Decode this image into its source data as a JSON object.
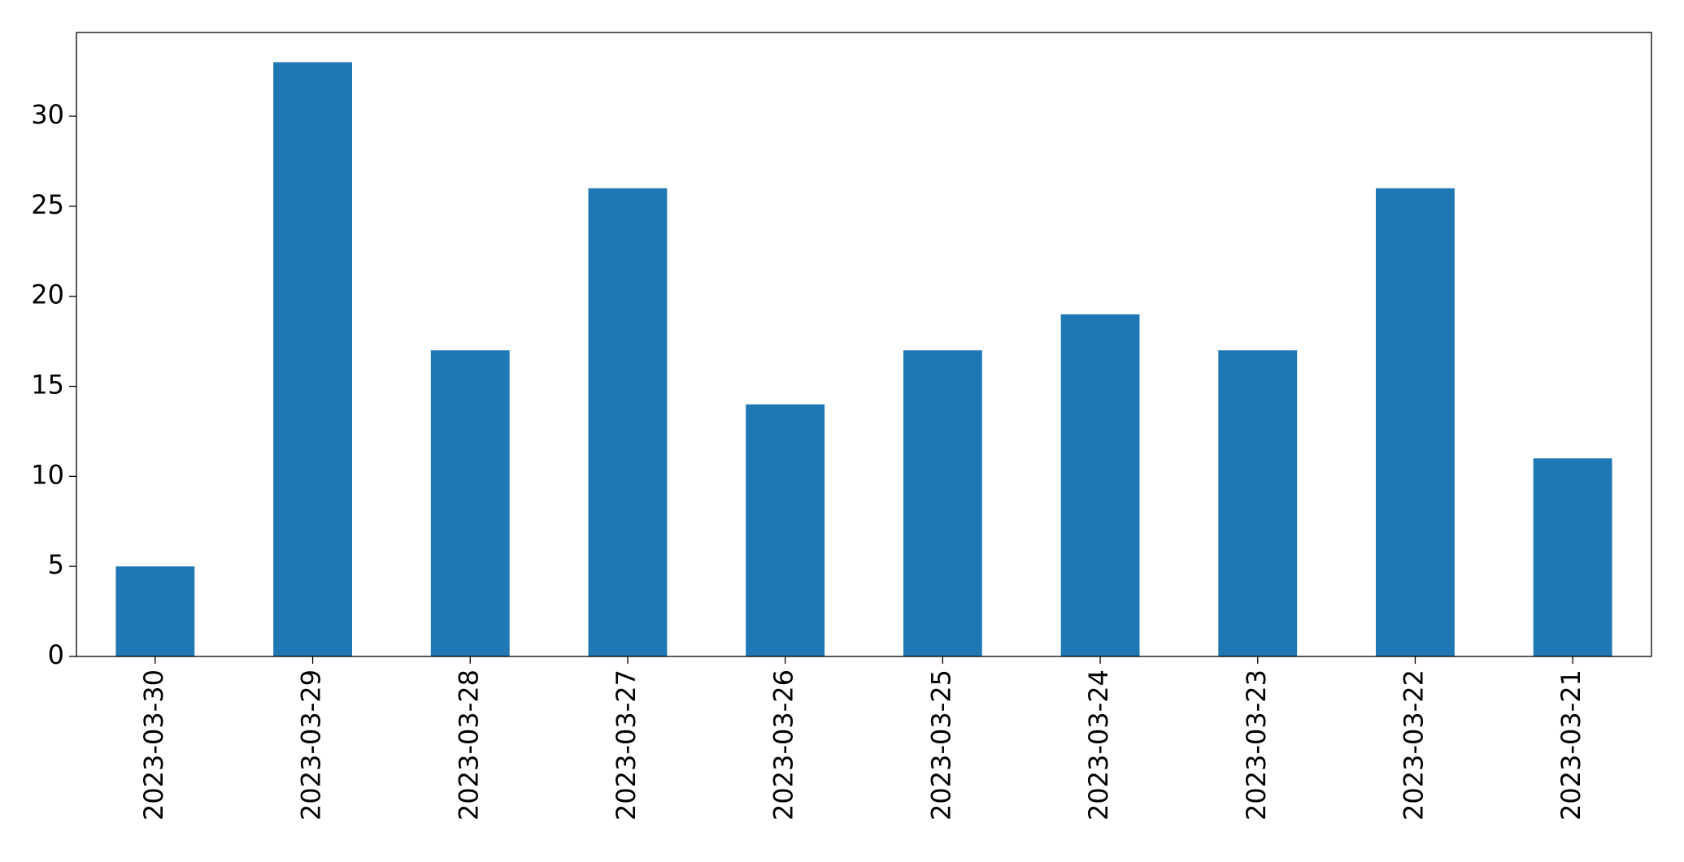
{
  "chart_data": {
    "type": "bar",
    "categories": [
      "2023-03-30",
      "2023-03-29",
      "2023-03-28",
      "2023-03-27",
      "2023-03-26",
      "2023-03-25",
      "2023-03-24",
      "2023-03-23",
      "2023-03-22",
      "2023-03-21"
    ],
    "values": [
      5,
      33,
      17,
      26,
      14,
      17,
      19,
      17,
      26,
      11
    ],
    "color": "#1f77b4",
    "ylim": [
      0,
      34.65
    ],
    "yticks": [
      0,
      5,
      10,
      15,
      20,
      25,
      30
    ],
    "grid": false
  }
}
